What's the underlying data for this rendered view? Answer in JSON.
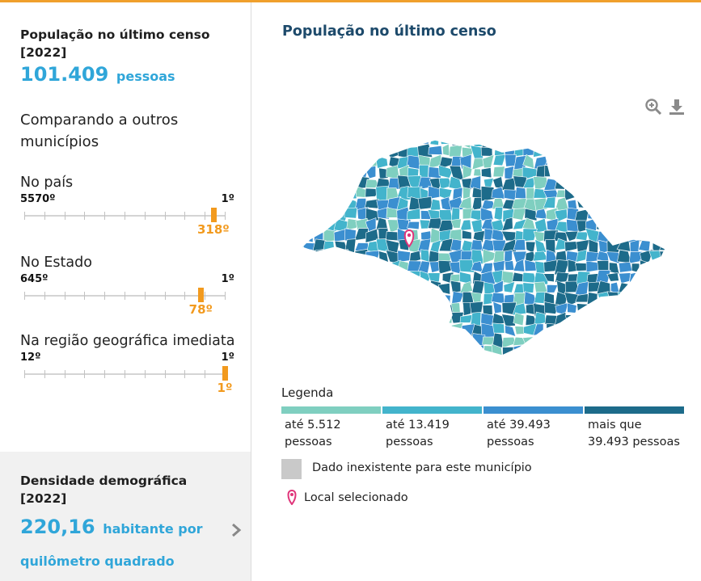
{
  "indicator": {
    "title": "População no último censo [2022]",
    "value": "101.409",
    "unit": "pessoas"
  },
  "comparison": {
    "title": "Comparando a outros municípios",
    "rankings": [
      {
        "label": "No país",
        "min": "5570º",
        "max": "1º",
        "position_label": "318º",
        "position": 0.9431
      },
      {
        "label": "No Estado",
        "min": "645º",
        "max": "1º",
        "position_label": "78º",
        "position": 0.8804
      },
      {
        "label": "Na região geográfica imediata",
        "min": "12º",
        "max": "1º",
        "position_label": "1º",
        "position": 1.0
      }
    ]
  },
  "density": {
    "title": "Densidade demográfica [2022]",
    "value": "220,16",
    "unit": "habitante por quilômetro quadrado"
  },
  "map": {
    "title": "População no último censo",
    "icons": [
      "zoom-in-icon",
      "download-icon"
    ],
    "legend_title": "Legenda",
    "legend": [
      {
        "label": "até 5.512 pessoas",
        "color": "#7fcfc0"
      },
      {
        "label": "até 13.419 pessoas",
        "color": "#43b4cc"
      },
      {
        "label": "até 39.493 pessoas",
        "color": "#3b8fd0"
      },
      {
        "label": "mais que 39.493 pessoas",
        "color": "#1d6b8a"
      }
    ],
    "no_data_label": "Dado inexistente para este município",
    "no_data_color": "#c9c9c9",
    "selected_label": "Local selecionado",
    "selected_color": "#e0357a"
  }
}
